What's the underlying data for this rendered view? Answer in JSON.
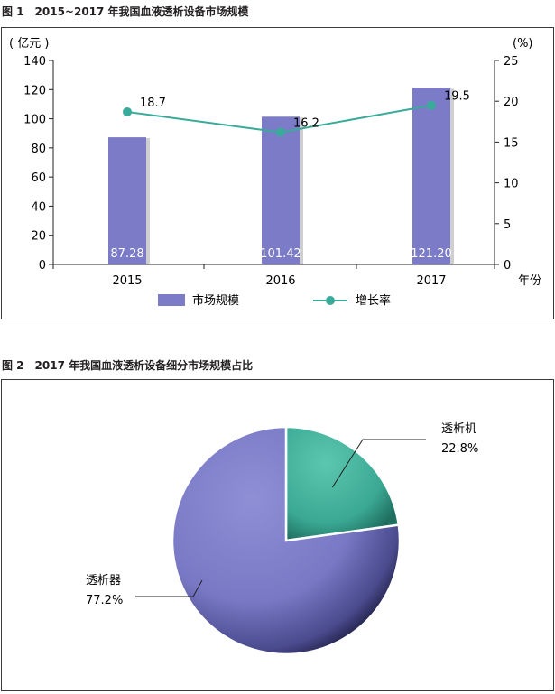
{
  "figure1": {
    "title": "图 1　2015~2017 年我国血液透析设备市场规模",
    "chart_data": {
      "type": "bar+line",
      "categories": [
        "2015",
        "2016",
        "2017"
      ],
      "xlabel": "年份",
      "y_left": {
        "unit_label": "( 亿元 )",
        "ylim": [
          0,
          140
        ],
        "ticks": [
          0,
          20,
          40,
          60,
          80,
          100,
          120,
          140
        ]
      },
      "y_right": {
        "unit_label": "(%)",
        "ylim": [
          0,
          25
        ],
        "ticks": [
          0,
          5,
          10,
          15,
          20,
          25
        ]
      },
      "series": [
        {
          "name": "市场规模",
          "type": "bar",
          "axis": "left",
          "values": [
            87.28,
            101.42,
            121.2
          ],
          "labels": [
            "87.28",
            "101.42",
            "121.20"
          ],
          "color": "#7b7bc8"
        },
        {
          "name": "增长率",
          "type": "line",
          "axis": "right",
          "values": [
            18.7,
            16.2,
            19.5
          ],
          "labels": [
            "18.7",
            "16.2",
            "19.5"
          ],
          "color": "#3aab9a"
        }
      ],
      "legend_position": "bottom"
    }
  },
  "figure2": {
    "title": "图 2　2017 年我国血液透析设备细分市场规模占比",
    "chart_data": {
      "type": "pie",
      "slices": [
        {
          "name": "透析机",
          "value": 22.8,
          "label": "22.8%",
          "color": "#3aa893"
        },
        {
          "name": "透析器",
          "value": 77.2,
          "label": "77.2%",
          "color": "#7b7bc8"
        }
      ]
    }
  }
}
